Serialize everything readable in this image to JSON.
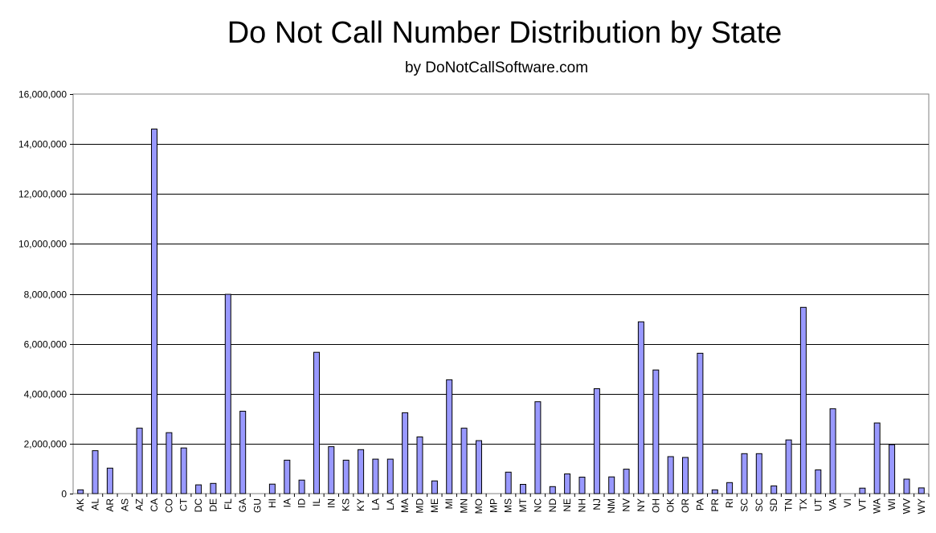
{
  "chart_data": {
    "type": "bar",
    "title": "Do Not Call Number Distribution by State",
    "subtitle": "by DoNotCallSoftware.com",
    "xlabel": "",
    "ylabel": "",
    "ylim": [
      0,
      16000000
    ],
    "yticks": [
      "0",
      "2,000,000",
      "4,000,000",
      "6,000,000",
      "8,000,000",
      "10,000,000",
      "12,000,000",
      "14,000,000",
      "16,000,000"
    ],
    "grid": true,
    "bar_color": "#9999ff",
    "categories": [
      "AK",
      "AL",
      "AR",
      "AS",
      "AZ",
      "CA",
      "CO",
      "CT",
      "DC",
      "DE",
      "FL",
      "GA",
      "GU",
      "HI",
      "IA",
      "ID",
      "IL",
      "IN",
      "KS",
      "KY",
      "LA",
      "LA",
      "MA",
      "MD",
      "ME",
      "MI",
      "MN",
      "MO",
      "MP",
      "MS",
      "MT",
      "NC",
      "ND",
      "NE",
      "NH",
      "NJ",
      "NM",
      "NV",
      "NY",
      "OH",
      "OK",
      "OR",
      "PA",
      "PR",
      "RI",
      "SC",
      "SC",
      "SD",
      "TN",
      "TX",
      "UT",
      "VA",
      "VI",
      "VT",
      "WA",
      "WI",
      "WV",
      "WY"
    ],
    "values": [
      150000,
      1720000,
      1020000,
      0,
      2620000,
      14600000,
      2440000,
      1830000,
      350000,
      410000,
      7980000,
      3300000,
      0,
      380000,
      1340000,
      540000,
      5660000,
      1880000,
      1340000,
      1760000,
      1380000,
      1380000,
      3240000,
      2270000,
      510000,
      4560000,
      2620000,
      2120000,
      0,
      860000,
      370000,
      3680000,
      280000,
      790000,
      660000,
      4200000,
      670000,
      980000,
      6880000,
      4950000,
      1480000,
      1450000,
      5620000,
      150000,
      440000,
      1600000,
      1600000,
      310000,
      2150000,
      7460000,
      950000,
      3400000,
      0,
      220000,
      2830000,
      1960000,
      580000,
      230000
    ]
  }
}
